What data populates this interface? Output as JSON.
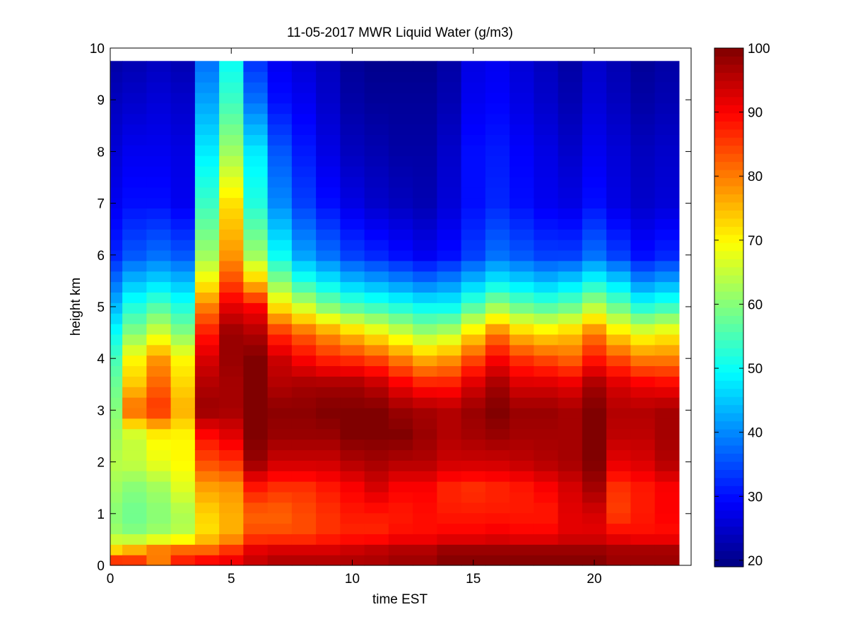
{
  "chart_data": {
    "type": "heatmap",
    "title": "11-05-2017 MWR Liquid Water (g/m3)",
    "xlabel": "time EST",
    "ylabel": "height km",
    "xlim": [
      0,
      24
    ],
    "ylim": [
      0,
      10
    ],
    "x_ticks": [
      0,
      5,
      10,
      15,
      20
    ],
    "y_ticks": [
      0,
      1,
      2,
      3,
      4,
      5,
      6,
      7,
      8,
      9,
      10
    ],
    "colorbar": {
      "min": 19,
      "max": 100,
      "ticks": [
        20,
        30,
        40,
        50,
        60,
        70,
        80,
        90,
        100
      ],
      "colormap": "jet"
    },
    "grid": false,
    "time_start": 0,
    "time_step": 1,
    "time_count": 24,
    "height_top": 9.75,
    "height_profile": [
      {
        "h": 0.0,
        "v": [
          92,
          90,
          80,
          90,
          93,
          93,
          95,
          97,
          97,
          97,
          97,
          97,
          98,
          98,
          100,
          100,
          100,
          100,
          100,
          100,
          100,
          98,
          98,
          98
        ]
      },
      {
        "h": 0.3,
        "v": [
          73,
          76,
          80,
          82,
          82,
          86,
          92,
          93,
          93,
          93,
          94,
          95,
          96,
          96,
          98,
          98,
          98,
          98,
          98,
          98,
          98,
          97,
          97,
          97
        ]
      },
      {
        "h": 0.6,
        "v": [
          62,
          60,
          62,
          64,
          72,
          76,
          84,
          84,
          84,
          86,
          87,
          87,
          89,
          89,
          90,
          90,
          91,
          90,
          90,
          92,
          92,
          90,
          89,
          89
        ]
      },
      {
        "h": 1.0,
        "v": [
          60,
          58,
          60,
          63,
          73,
          76,
          82,
          82,
          84,
          86,
          88,
          88,
          88,
          89,
          88,
          88,
          88,
          88,
          88,
          92,
          93,
          85,
          88,
          90
        ]
      },
      {
        "h": 1.5,
        "v": [
          62,
          60,
          62,
          67,
          77,
          78,
          88,
          86,
          86,
          88,
          90,
          93,
          90,
          90,
          87,
          86,
          87,
          88,
          90,
          93,
          97,
          86,
          88,
          90
        ]
      },
      {
        "h": 2.0,
        "v": [
          64,
          65,
          68,
          70,
          84,
          86,
          98,
          94,
          94,
          94,
          96,
          97,
          96,
          96,
          94,
          94,
          94,
          95,
          96,
          97,
          100,
          92,
          93,
          96
        ]
      },
      {
        "h": 2.5,
        "v": [
          62,
          65,
          70,
          70,
          89,
          92,
          100,
          98,
          98,
          98,
          100,
          100,
          100,
          98,
          96,
          97,
          98,
          97,
          97,
          97,
          100,
          95,
          95,
          97
        ]
      },
      {
        "h": 3.0,
        "v": [
          60,
          82,
          86,
          76,
          98,
          97,
          100,
          99,
          99,
          100,
          100,
          100,
          98,
          97,
          96,
          98,
          100,
          98,
          98,
          97,
          100,
          96,
          96,
          97
        ]
      },
      {
        "h": 3.5,
        "v": [
          58,
          74,
          82,
          73,
          96,
          97,
          100,
          96,
          97,
          97,
          97,
          95,
          91,
          88,
          88,
          93,
          97,
          93,
          93,
          92,
          97,
          93,
          91,
          90
        ]
      },
      {
        "h": 4.0,
        "v": [
          55,
          70,
          78,
          70,
          93,
          98,
          100,
          94,
          90,
          87,
          86,
          84,
          80,
          76,
          78,
          84,
          90,
          86,
          84,
          82,
          88,
          84,
          80,
          80
        ]
      },
      {
        "h": 4.5,
        "v": [
          50,
          60,
          66,
          60,
          88,
          98,
          96,
          86,
          82,
          78,
          74,
          70,
          66,
          62,
          64,
          72,
          80,
          74,
          72,
          74,
          80,
          72,
          68,
          70
        ]
      },
      {
        "h": 5.0,
        "v": [
          44,
          52,
          56,
          52,
          80,
          92,
          90,
          72,
          66,
          60,
          56,
          54,
          52,
          50,
          50,
          56,
          62,
          58,
          56,
          58,
          64,
          58,
          52,
          54
        ]
      },
      {
        "h": 5.5,
        "v": [
          38,
          44,
          46,
          44,
          70,
          84,
          74,
          60,
          52,
          48,
          44,
          42,
          40,
          38,
          40,
          44,
          48,
          46,
          44,
          46,
          50,
          46,
          40,
          42
        ]
      },
      {
        "h": 6.0,
        "v": [
          32,
          36,
          38,
          36,
          62,
          78,
          62,
          50,
          42,
          38,
          34,
          32,
          30,
          28,
          30,
          34,
          38,
          36,
          34,
          34,
          38,
          34,
          30,
          32
        ]
      },
      {
        "h": 7.0,
        "v": [
          28,
          30,
          30,
          28,
          54,
          72,
          52,
          40,
          34,
          30,
          27,
          25,
          24,
          23,
          26,
          30,
          32,
          30,
          28,
          27,
          30,
          27,
          25,
          26
        ]
      },
      {
        "h": 8.0,
        "v": [
          26,
          28,
          28,
          27,
          48,
          62,
          48,
          36,
          31,
          27,
          24,
          23,
          22,
          22,
          25,
          30,
          31,
          29,
          27,
          25,
          28,
          26,
          24,
          25
        ]
      },
      {
        "h": 9.0,
        "v": [
          24,
          25,
          26,
          25,
          42,
          54,
          38,
          30,
          28,
          25,
          22,
          21,
          21,
          21,
          23,
          28,
          29,
          27,
          25,
          23,
          26,
          24,
          22,
          23
        ]
      },
      {
        "h": 9.75,
        "v": [
          22,
          23,
          24,
          23,
          38,
          50,
          33,
          28,
          26,
          24,
          21,
          20,
          20,
          20,
          22,
          27,
          28,
          26,
          24,
          22,
          25,
          23,
          21,
          22
        ]
      }
    ]
  }
}
